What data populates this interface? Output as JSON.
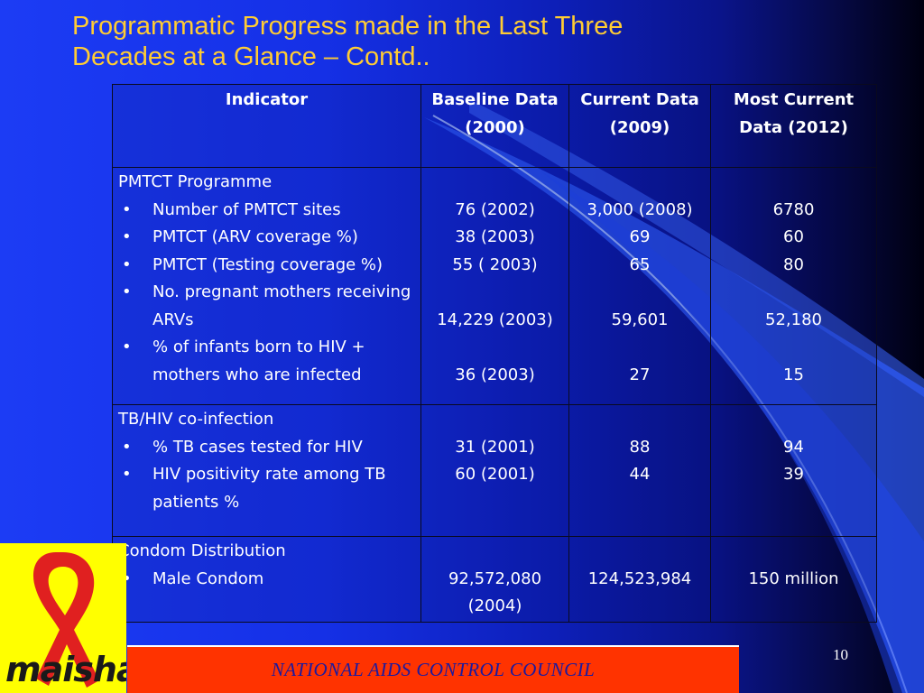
{
  "title": {
    "line1": "Programmatic Progress made in the Last Three",
    "line2": "Decades at a Glance – Contd.."
  },
  "colors": {
    "title": "#ffcc33",
    "footer_bar": "#ff3300",
    "footer_text": "#1a1aa0",
    "logo_bg": "#ffff00",
    "ribbon": "#e02020"
  },
  "table": {
    "headers": [
      "Indicator",
      "Baseline Data (2000)",
      "Current Data (2009)",
      "Most Current Data (2012)"
    ],
    "sections": [
      {
        "title": "PMTCT Programme",
        "bullets": [
          "Number of PMTCT sites",
          "PMTCT (ARV coverage %)",
          "PMTCT (Testing coverage %)",
          "No. pregnant mothers receiving ARVs",
          "% of infants born to HIV + mothers who are infected"
        ],
        "baseline": [
          "",
          "76 (2002)",
          "38 (2003)",
          "55 ( 2003)",
          "",
          "14,229 (2003)",
          "",
          "36 (2003)"
        ],
        "current": [
          "",
          "3,000 (2008)",
          "69",
          "65",
          "",
          "59,601",
          "",
          "27"
        ],
        "most_current": [
          "",
          "6780",
          "60",
          "80",
          "",
          "52,180",
          "",
          "15"
        ]
      },
      {
        "title": "TB/HIV co-infection",
        "bullets": [
          "% TB cases tested for HIV",
          "HIV positivity rate among TB patients %"
        ],
        "baseline": [
          "",
          "31 (2001)",
          "60 (2001)"
        ],
        "current": [
          "",
          "88",
          "44"
        ],
        "most_current": [
          "",
          "94",
          "39"
        ]
      },
      {
        "title": "Condom Distribution",
        "bullets": [
          "Male Condom"
        ],
        "baseline": [
          "",
          "92,572,080 (2004)"
        ],
        "current": [
          "",
          "124,523,984"
        ],
        "most_current": [
          "",
          "150 million"
        ]
      }
    ]
  },
  "logo": {
    "text": "maisha!",
    "icon": "red-ribbon-icon"
  },
  "footer": {
    "text": "NATIONAL AIDS CONTROL COUNCIL",
    "page_number": "10"
  }
}
